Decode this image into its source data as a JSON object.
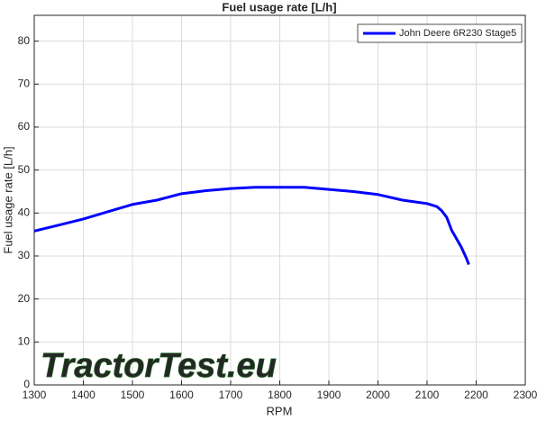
{
  "chart_data": {
    "type": "line",
    "title": "Fuel usage rate [L/h]",
    "x_label": "RPM",
    "y_label": "Fuel usage rate [L/h]",
    "watermark": "TractorTest.eu",
    "x": [
      1300,
      1350,
      1400,
      1450,
      1500,
      1550,
      1600,
      1650,
      1700,
      1750,
      1800,
      1850,
      1900,
      1950,
      2000,
      2050,
      2100,
      2120,
      2130,
      2140,
      2150,
      2160,
      2170,
      2180,
      2185
    ],
    "series": [
      {
        "name": "John Deere 6R230 Stage5",
        "color": "#0000ff",
        "values": [
          35.8,
          37.2,
          38.6,
          40.3,
          42.0,
          43.0,
          44.5,
          45.2,
          45.7,
          46.0,
          46.0,
          46.0,
          45.5,
          45.0,
          44.3,
          43.0,
          42.2,
          41.5,
          40.5,
          39.0,
          36.0,
          34.0,
          32.0,
          29.5,
          28.0
        ]
      }
    ],
    "xlim": [
      1300,
      2300
    ],
    "xticks": [
      1300,
      1400,
      1500,
      1600,
      1700,
      1800,
      1900,
      2000,
      2100,
      2200,
      2300
    ],
    "ylim": [
      0,
      86
    ],
    "yticks": [
      0,
      10,
      20,
      30,
      40,
      50,
      60,
      70,
      80
    ],
    "grid": true,
    "legend": "top-right"
  }
}
